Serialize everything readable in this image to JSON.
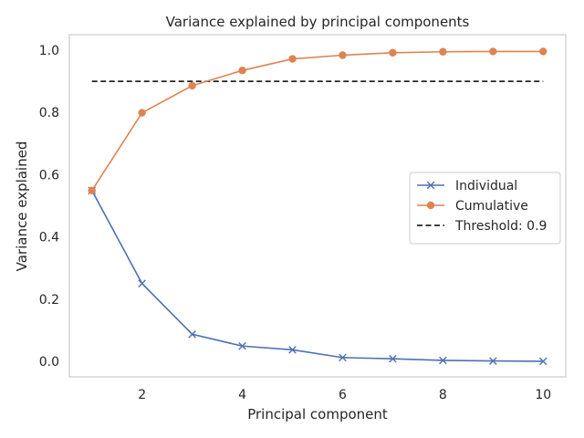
{
  "chart_data": {
    "type": "line",
    "title": "Variance explained by principal components",
    "xlabel": "Principal component",
    "ylabel": "Variance explained",
    "xlim": [
      0.55,
      10.45
    ],
    "ylim": [
      -0.05,
      1.05
    ],
    "xticks": [
      2,
      4,
      6,
      8,
      10
    ],
    "yticks": [
      0.0,
      0.2,
      0.4,
      0.6,
      0.8,
      1.0
    ],
    "xtick_labels": [
      "2",
      "4",
      "6",
      "8",
      "10"
    ],
    "ytick_labels": [
      "0.0",
      "0.2",
      "0.4",
      "0.6",
      "0.8",
      "1.0"
    ],
    "grid": false,
    "legend_position": "center-right",
    "x": [
      1,
      2,
      3,
      4,
      5,
      6,
      7,
      8,
      9,
      10
    ],
    "series": [
      {
        "name": "Individual",
        "marker": "x",
        "color": "#4c72b0",
        "values": [
          0.549,
          0.25,
          0.087,
          0.049,
          0.037,
          0.012,
          0.008,
          0.003,
          0.001,
          0.0
        ]
      },
      {
        "name": "Cumulative",
        "marker": "o",
        "color": "#dd8452",
        "values": [
          0.549,
          0.799,
          0.886,
          0.935,
          0.972,
          0.984,
          0.992,
          0.995,
          0.996,
          0.996
        ]
      }
    ],
    "threshold": {
      "name": "Threshold: 0.9",
      "value": 0.9,
      "x_range": [
        1,
        10
      ],
      "color": "#000000",
      "style": "dashed"
    }
  }
}
